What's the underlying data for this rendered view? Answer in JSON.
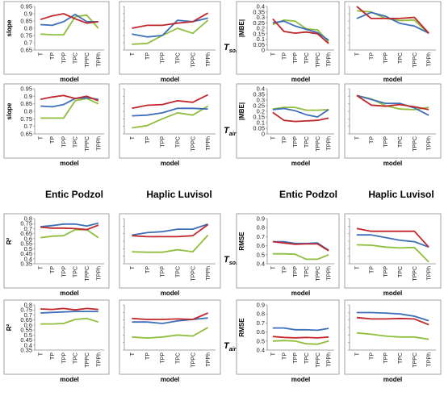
{
  "headers": {
    "h1": "Entic Podzol",
    "h2": "Haplic Luvisol",
    "h3": "Entic Podzol",
    "h4": "Haplic Luvisol"
  },
  "model_label": "model",
  "row_labels": {
    "r1": {
      "main": "T",
      "sub": "soil"
    },
    "r2": {
      "main": "T",
      "sub": "air"
    },
    "r3": {
      "main": "T",
      "sub": "soil"
    },
    "r4": {
      "main": "T",
      "sub": "air"
    }
  },
  "series_colors": [
    "#c0262b",
    "#3d6fb8",
    "#8fbd3c"
  ],
  "chart_data": [
    {
      "type": "line",
      "ylabel": "slope",
      "ylim": [
        0.65,
        0.95
      ],
      "yticks": [
        "0.65",
        "0.7",
        "0.75",
        "0.8",
        "0.85",
        "0.9",
        "0.95"
      ],
      "categories": [
        "T",
        "TP",
        "TPP",
        "TPC",
        "TPPC",
        "TPPh"
      ],
      "series": [
        {
          "values": [
            0.86,
            0.885,
            0.9,
            0.865,
            0.835,
            0.845
          ]
        },
        {
          "values": [
            0.825,
            0.82,
            0.845,
            0.895,
            0.845,
            0.845
          ]
        },
        {
          "values": [
            0.76,
            0.755,
            0.755,
            0.88,
            0.89,
            0.8
          ]
        }
      ]
    },
    {
      "type": "line",
      "ylabel": "",
      "ylim": [
        0.65,
        0.95
      ],
      "yticks": [],
      "categories": [
        "T",
        "TP",
        "TPP",
        "TPC",
        "TPPC",
        "TPPh"
      ],
      "series": [
        {
          "values": [
            0.8,
            0.82,
            0.82,
            0.835,
            0.845,
            0.905
          ]
        },
        {
          "values": [
            0.76,
            0.74,
            0.75,
            0.855,
            0.845,
            0.87
          ]
        },
        {
          "values": [
            0.69,
            0.695,
            0.75,
            0.8,
            0.765,
            0.855
          ]
        }
      ]
    },
    {
      "type": "line",
      "ylabel": "|MBE|",
      "ylim": [
        0,
        0.4
      ],
      "yticks": [
        "0",
        "0.05",
        "0.1",
        "0.15",
        "0.2",
        "0.25",
        "0.3",
        "0.35",
        "0.4"
      ],
      "categories": [
        "T",
        "TP",
        "TPP",
        "TPC",
        "TPPC",
        "TPPh"
      ],
      "series": [
        {
          "values": [
            0.285,
            0.17,
            0.155,
            0.165,
            0.15,
            0.06
          ]
        },
        {
          "values": [
            0.25,
            0.265,
            0.22,
            0.19,
            0.16,
            0.09
          ]
        },
        {
          "values": [
            0.235,
            0.275,
            0.265,
            0.195,
            0.185,
            0.075
          ]
        }
      ]
    },
    {
      "type": "line",
      "ylabel": "",
      "ylim": [
        0,
        0.4
      ],
      "yticks": [],
      "categories": [
        "T",
        "TP",
        "TPP",
        "TPC",
        "TPPC",
        "TPPh"
      ],
      "series": [
        {
          "values": [
            0.4,
            0.29,
            0.29,
            0.29,
            0.3,
            0.155
          ]
        },
        {
          "values": [
            0.29,
            0.345,
            0.31,
            0.245,
            0.22,
            0.155
          ]
        },
        {
          "values": [
            0.36,
            0.35,
            0.29,
            0.27,
            0.275,
            0.15
          ]
        }
      ]
    },
    {
      "type": "line",
      "ylabel": "slope",
      "ylim": [
        0.65,
        0.95
      ],
      "yticks": [
        "0.65",
        "0.7",
        "0.75",
        "0.8",
        "0.85",
        "0.9",
        "0.95"
      ],
      "categories": [
        "T",
        "TP",
        "TPP",
        "TPC",
        "TPPC",
        "TPPh"
      ],
      "series": [
        {
          "values": [
            0.88,
            0.895,
            0.905,
            0.885,
            0.9,
            0.87
          ]
        },
        {
          "values": [
            0.835,
            0.83,
            0.845,
            0.885,
            0.89,
            0.88
          ]
        },
        {
          "values": [
            0.755,
            0.755,
            0.755,
            0.87,
            0.885,
            0.85
          ]
        }
      ]
    },
    {
      "type": "line",
      "ylabel": "",
      "ylim": [
        0.65,
        0.95
      ],
      "yticks": [],
      "categories": [
        "T",
        "TP",
        "TPP",
        "TPC",
        "TPPC",
        "TPPh"
      ],
      "series": [
        {
          "values": [
            0.82,
            0.84,
            0.845,
            0.87,
            0.86,
            0.91
          ]
        },
        {
          "values": [
            0.77,
            0.775,
            0.79,
            0.82,
            0.82,
            0.815
          ]
        },
        {
          "values": [
            0.69,
            0.705,
            0.75,
            0.79,
            0.775,
            0.835
          ]
        }
      ]
    },
    {
      "type": "line",
      "ylabel": "|MBE|",
      "ylim": [
        0,
        0.4
      ],
      "yticks": [
        "0",
        "0.05",
        "0.1",
        "0.15",
        "0.2",
        "0.25",
        "0.3",
        "0.35",
        "0.4"
      ],
      "categories": [
        "T",
        "TP",
        "TPP",
        "TPC",
        "TPPC",
        "TPPh"
      ],
      "series": [
        {
          "values": [
            0.19,
            0.12,
            0.11,
            0.115,
            0.12,
            0.14
          ]
        },
        {
          "values": [
            0.215,
            0.225,
            0.205,
            0.17,
            0.15,
            0.215
          ]
        },
        {
          "values": [
            0.22,
            0.235,
            0.235,
            0.21,
            0.21,
            0.215
          ]
        }
      ]
    },
    {
      "type": "line",
      "ylabel": "",
      "ylim": [
        0,
        0.4
      ],
      "yticks": [],
      "categories": [
        "T",
        "TP",
        "TPP",
        "TPC",
        "TPPC",
        "TPPh"
      ],
      "series": [
        {
          "values": [
            0.34,
            0.255,
            0.245,
            0.26,
            0.24,
            0.215
          ]
        },
        {
          "values": [
            0.34,
            0.305,
            0.27,
            0.27,
            0.23,
            0.165
          ]
        },
        {
          "values": [
            0.34,
            0.31,
            0.25,
            0.22,
            0.215,
            0.235
          ]
        }
      ]
    },
    {
      "type": "line",
      "ylabel": "R²",
      "ylim": [
        0.35,
        0.8
      ],
      "yticks": [
        "0.35",
        "0.4",
        "0.45",
        "0.5",
        "0.55",
        "0.6",
        "0.65",
        "0.7",
        "0.75",
        "0.8"
      ],
      "categories": [
        "T",
        "TP",
        "TPP",
        "TPC",
        "TPPC",
        "TPPh"
      ],
      "series": [
        {
          "values": [
            0.715,
            0.705,
            0.705,
            0.7,
            0.69,
            0.735
          ]
        },
        {
          "values": [
            0.72,
            0.73,
            0.745,
            0.745,
            0.725,
            0.755
          ]
        },
        {
          "values": [
            0.61,
            0.625,
            0.63,
            0.69,
            0.69,
            0.61
          ]
        }
      ]
    },
    {
      "type": "line",
      "ylabel": "",
      "ylim": [
        0.35,
        0.8
      ],
      "yticks": [],
      "categories": [
        "T",
        "TP",
        "TPP",
        "TPC",
        "TPPC",
        "TPPh"
      ],
      "series": [
        {
          "values": [
            0.63,
            0.62,
            0.62,
            0.62,
            0.63,
            0.74
          ]
        },
        {
          "values": [
            0.635,
            0.66,
            0.67,
            0.695,
            0.695,
            0.745
          ]
        },
        {
          "values": [
            0.47,
            0.465,
            0.465,
            0.49,
            0.47,
            0.635
          ]
        }
      ]
    },
    {
      "type": "line",
      "ylabel": "RMSE",
      "ylim": [
        0.4,
        0.9
      ],
      "yticks": [
        "0.4",
        "0.5",
        "0.6",
        "0.7",
        "0.8",
        "0.9"
      ],
      "categories": [
        "T",
        "TP",
        "TPP",
        "TPC",
        "TPPC",
        "TPPh"
      ],
      "series": [
        {
          "values": [
            0.645,
            0.63,
            0.615,
            0.62,
            0.62,
            0.545
          ]
        },
        {
          "values": [
            0.645,
            0.645,
            0.625,
            0.625,
            0.63,
            0.55
          ]
        },
        {
          "values": [
            0.51,
            0.51,
            0.505,
            0.45,
            0.45,
            0.5
          ]
        }
      ]
    },
    {
      "type": "line",
      "ylabel": "",
      "ylim": [
        0.4,
        0.9
      ],
      "yticks": [],
      "categories": [
        "T",
        "TP",
        "TPP",
        "TPC",
        "TPPC",
        "TPPh"
      ],
      "series": [
        {
          "values": [
            0.79,
            0.76,
            0.76,
            0.76,
            0.76,
            0.585
          ]
        },
        {
          "values": [
            0.72,
            0.72,
            0.69,
            0.66,
            0.645,
            0.585
          ]
        },
        {
          "values": [
            0.61,
            0.605,
            0.585,
            0.575,
            0.58,
            0.42
          ]
        }
      ]
    },
    {
      "type": "line",
      "ylabel": "R²",
      "ylim": [
        0.35,
        0.8
      ],
      "yticks": [
        "0.35",
        "0.4",
        "0.45",
        "0.5",
        "0.55",
        "0.6",
        "0.65",
        "0.7",
        "0.75",
        "0.8"
      ],
      "categories": [
        "T",
        "TP",
        "TPP",
        "TPC",
        "TPPC",
        "TPPh"
      ],
      "series": [
        {
          "values": [
            0.76,
            0.755,
            0.765,
            0.75,
            0.765,
            0.755
          ]
        },
        {
          "values": [
            0.72,
            0.725,
            0.73,
            0.735,
            0.735,
            0.735
          ]
        },
        {
          "values": [
            0.61,
            0.61,
            0.615,
            0.655,
            0.665,
            0.63
          ]
        }
      ]
    },
    {
      "type": "line",
      "ylabel": "",
      "ylim": [
        0.35,
        0.8
      ],
      "yticks": [],
      "categories": [
        "T",
        "TP",
        "TPP",
        "TPC",
        "TPPC",
        "TPPh"
      ],
      "series": [
        {
          "values": [
            0.665,
            0.655,
            0.655,
            0.66,
            0.655,
            0.72
          ]
        },
        {
          "values": [
            0.63,
            0.63,
            0.615,
            0.64,
            0.655,
            0.67
          ]
        },
        {
          "values": [
            0.48,
            0.47,
            0.48,
            0.5,
            0.49,
            0.575
          ]
        }
      ]
    },
    {
      "type": "line",
      "ylabel": "RMSE",
      "ylim": [
        0.4,
        0.9
      ],
      "yticks": [
        "0.4",
        "0.5",
        "0.6",
        "0.7",
        "0.8",
        "0.9"
      ],
      "categories": [
        "T",
        "TP",
        "TPP",
        "TPC",
        "TPPC",
        "TPPh"
      ],
      "series": [
        {
          "values": [
            0.55,
            0.54,
            0.535,
            0.54,
            0.535,
            0.545
          ]
        },
        {
          "values": [
            0.645,
            0.645,
            0.625,
            0.625,
            0.62,
            0.64
          ]
        },
        {
          "values": [
            0.5,
            0.505,
            0.5,
            0.47,
            0.465,
            0.5
          ]
        }
      ]
    },
    {
      "type": "line",
      "ylabel": "",
      "ylim": [
        0.4,
        0.9
      ],
      "yticks": [],
      "categories": [
        "T",
        "TP",
        "TPP",
        "TPC",
        "TPPC",
        "TPPh"
      ],
      "series": [
        {
          "values": [
            0.76,
            0.745,
            0.745,
            0.75,
            0.745,
            0.68
          ]
        },
        {
          "values": [
            0.815,
            0.815,
            0.81,
            0.8,
            0.775,
            0.725
          ]
        },
        {
          "values": [
            0.59,
            0.575,
            0.555,
            0.545,
            0.545,
            0.52
          ]
        }
      ]
    }
  ]
}
